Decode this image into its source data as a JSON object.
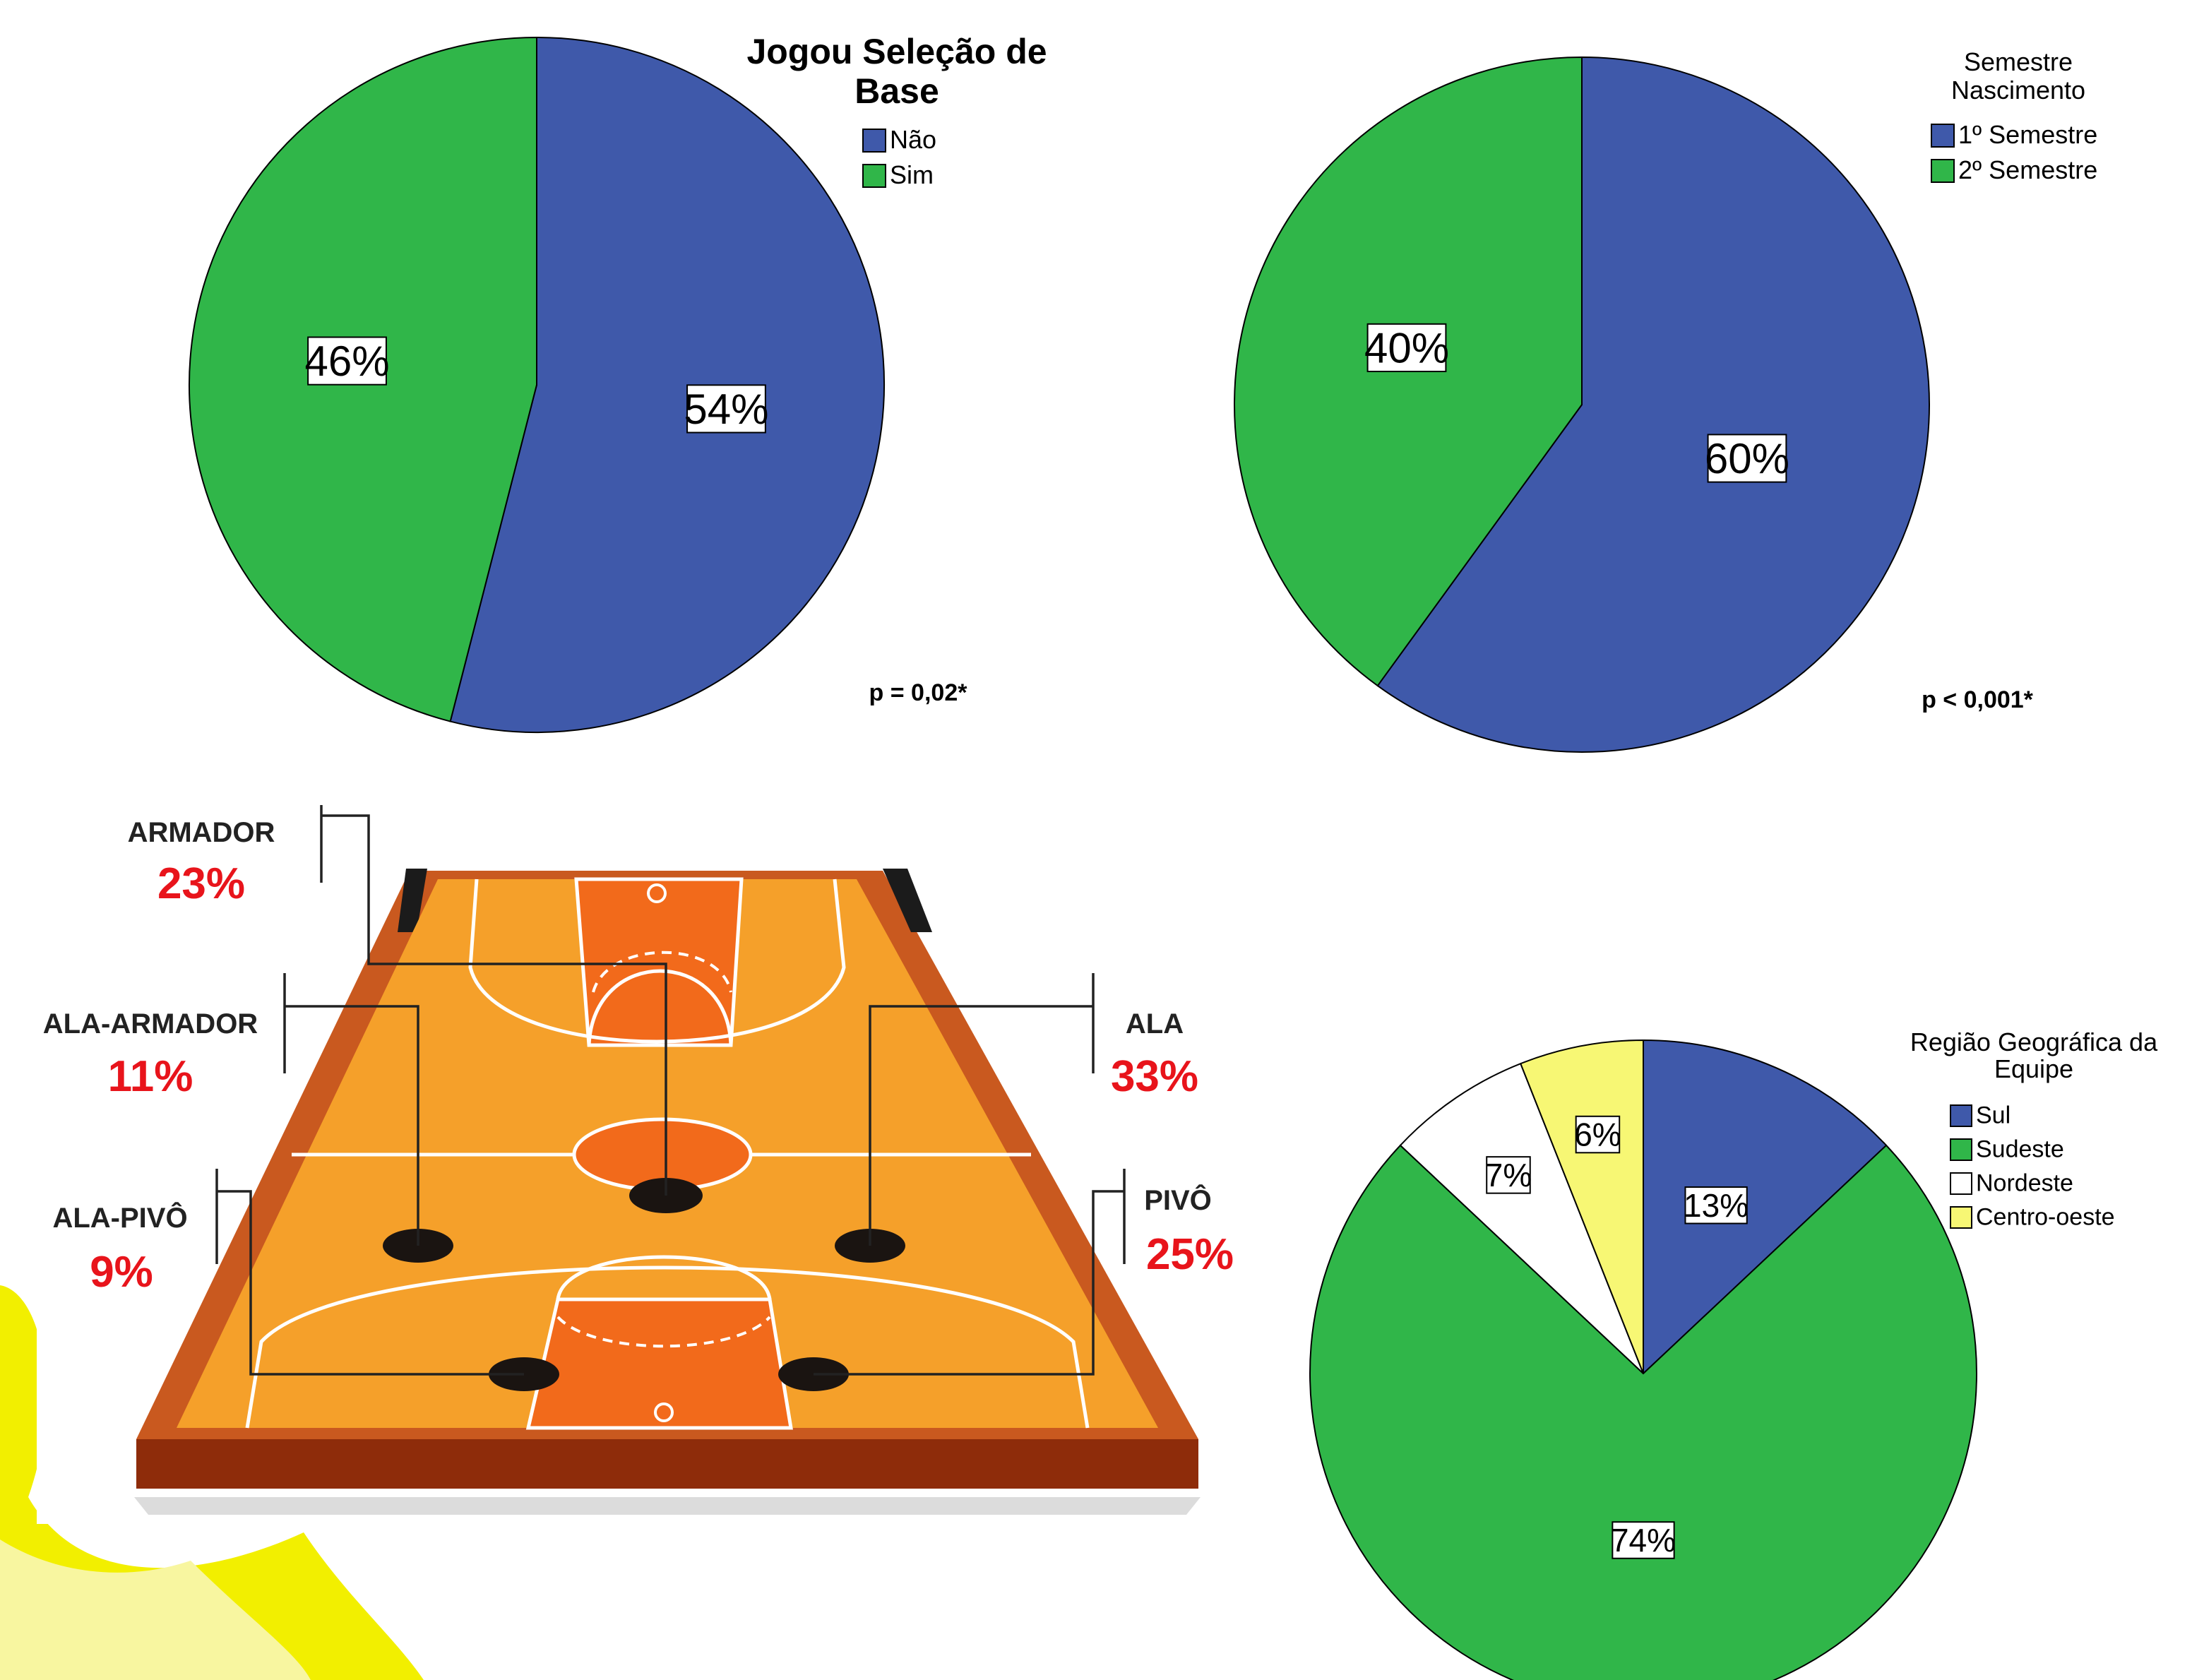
{
  "chart_data": [
    {
      "type": "pie",
      "title": "Jogou Seleção de Base",
      "legend_position": "top-right",
      "series": [
        {
          "values": [
            54,
            46
          ]
        }
      ],
      "categories": [
        "Não",
        "Sim"
      ],
      "slice_labels": [
        "54%",
        "46%"
      ],
      "colors": [
        "#3f59aa",
        "#30b649"
      ],
      "note": "p = 0,02*"
    },
    {
      "type": "pie",
      "title": "Semestre Nascimento",
      "legend_position": "top-right",
      "series": [
        {
          "values": [
            60,
            40
          ]
        }
      ],
      "categories": [
        "1º Semestre",
        "2º Semestre"
      ],
      "slice_labels": [
        "60%",
        "40%"
      ],
      "colors": [
        "#3f59aa",
        "#30b649"
      ],
      "note": "p < 0,001*"
    },
    {
      "type": "pie",
      "title": "Região Geográfica da Equipe",
      "legend_position": "top-right",
      "series": [
        {
          "values": [
            13,
            74,
            7,
            6
          ]
        }
      ],
      "categories": [
        "Sul",
        "Sudeste",
        "Nordeste",
        "Centro-oeste"
      ],
      "slice_labels": [
        "13%",
        "74%",
        "7%",
        "6%"
      ],
      "colors": [
        "#3f59aa",
        "#30b649",
        "#ffffff",
        "#f7f774"
      ]
    }
  ],
  "court": {
    "positions": [
      {
        "name": "ARMADOR",
        "value": "23%"
      },
      {
        "name": "ALA-ARMADOR",
        "value": "11%"
      },
      {
        "name": "ALA-PIVÔ",
        "value": "9%"
      },
      {
        "name": "ALA",
        "value": "33%"
      },
      {
        "name": "PIVÔ",
        "value": "25%"
      }
    ]
  }
}
